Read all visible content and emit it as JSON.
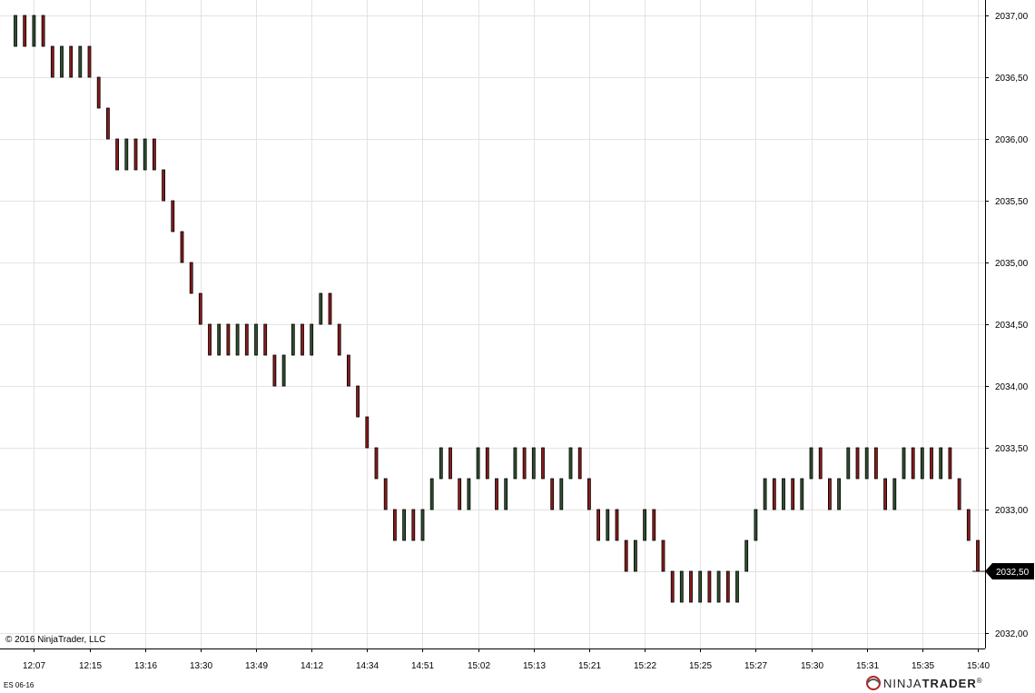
{
  "chart_data": {
    "type": "renko",
    "instrument": "ES 06-16",
    "copyright": "© 2016 NinjaTrader, LLC",
    "brand": {
      "left": "NINJA",
      "right": "TRADER",
      "mark": "®"
    },
    "brick_size": 0.25,
    "x_tick_labels": [
      "12:07",
      "12:15",
      "13:16",
      "13:30",
      "13:49",
      "14:12",
      "14:34",
      "14:51",
      "15:02",
      "15:13",
      "15:21",
      "15:22",
      "15:25",
      "15:27",
      "15:30",
      "15:31",
      "15:35",
      "15:40"
    ],
    "y_tick_labels": [
      "2037,00",
      "2036,50",
      "2036,00",
      "2035,50",
      "2035,00",
      "2034,50",
      "2034,00",
      "2033,50",
      "2033,00",
      "2032,50",
      "2032,00"
    ],
    "ylim": [
      2031.875,
      2037.125
    ],
    "last_price": {
      "value": 2032.5,
      "label": "2032,50"
    },
    "bricks_close": [
      2037.0,
      2036.75,
      2037.0,
      2036.75,
      2036.5,
      2036.75,
      2036.5,
      2036.75,
      2036.5,
      2036.25,
      2036.0,
      2035.75,
      2036.0,
      2035.75,
      2036.0,
      2035.75,
      2035.5,
      2035.25,
      2035.0,
      2034.75,
      2034.5,
      2034.25,
      2034.5,
      2034.25,
      2034.5,
      2034.25,
      2034.5,
      2034.25,
      2034.0,
      2034.25,
      2034.5,
      2034.25,
      2034.5,
      2034.75,
      2034.5,
      2034.25,
      2034.0,
      2033.75,
      2033.5,
      2033.25,
      2033.0,
      2032.75,
      2033.0,
      2032.75,
      2033.0,
      2033.25,
      2033.5,
      2033.25,
      2033.0,
      2033.25,
      2033.5,
      2033.25,
      2033.0,
      2033.25,
      2033.5,
      2033.25,
      2033.5,
      2033.25,
      2033.0,
      2033.25,
      2033.5,
      2033.25,
      2033.0,
      2032.75,
      2033.0,
      2032.75,
      2032.5,
      2032.75,
      2033.0,
      2032.75,
      2032.5,
      2032.25,
      2032.5,
      2032.25,
      2032.5,
      2032.25,
      2032.5,
      2032.25,
      2032.5,
      2032.75,
      2033.0,
      2033.25,
      2033.0,
      2033.25,
      2033.0,
      2033.25,
      2033.5,
      2033.25,
      2033.0,
      2033.25,
      2033.5,
      2033.25,
      2033.5,
      2033.25,
      2033.0,
      2033.25,
      2033.5,
      2033.25,
      2033.5,
      2033.25,
      2033.5,
      2033.25,
      2033.0,
      2032.75,
      2032.5
    ],
    "colors": {
      "up_fill": "#2f4f2f",
      "down_fill": "#8b1a1a",
      "outline": "#000000",
      "grid": "#e3e3e3",
      "price_tag": "#000000"
    },
    "grid": true
  }
}
